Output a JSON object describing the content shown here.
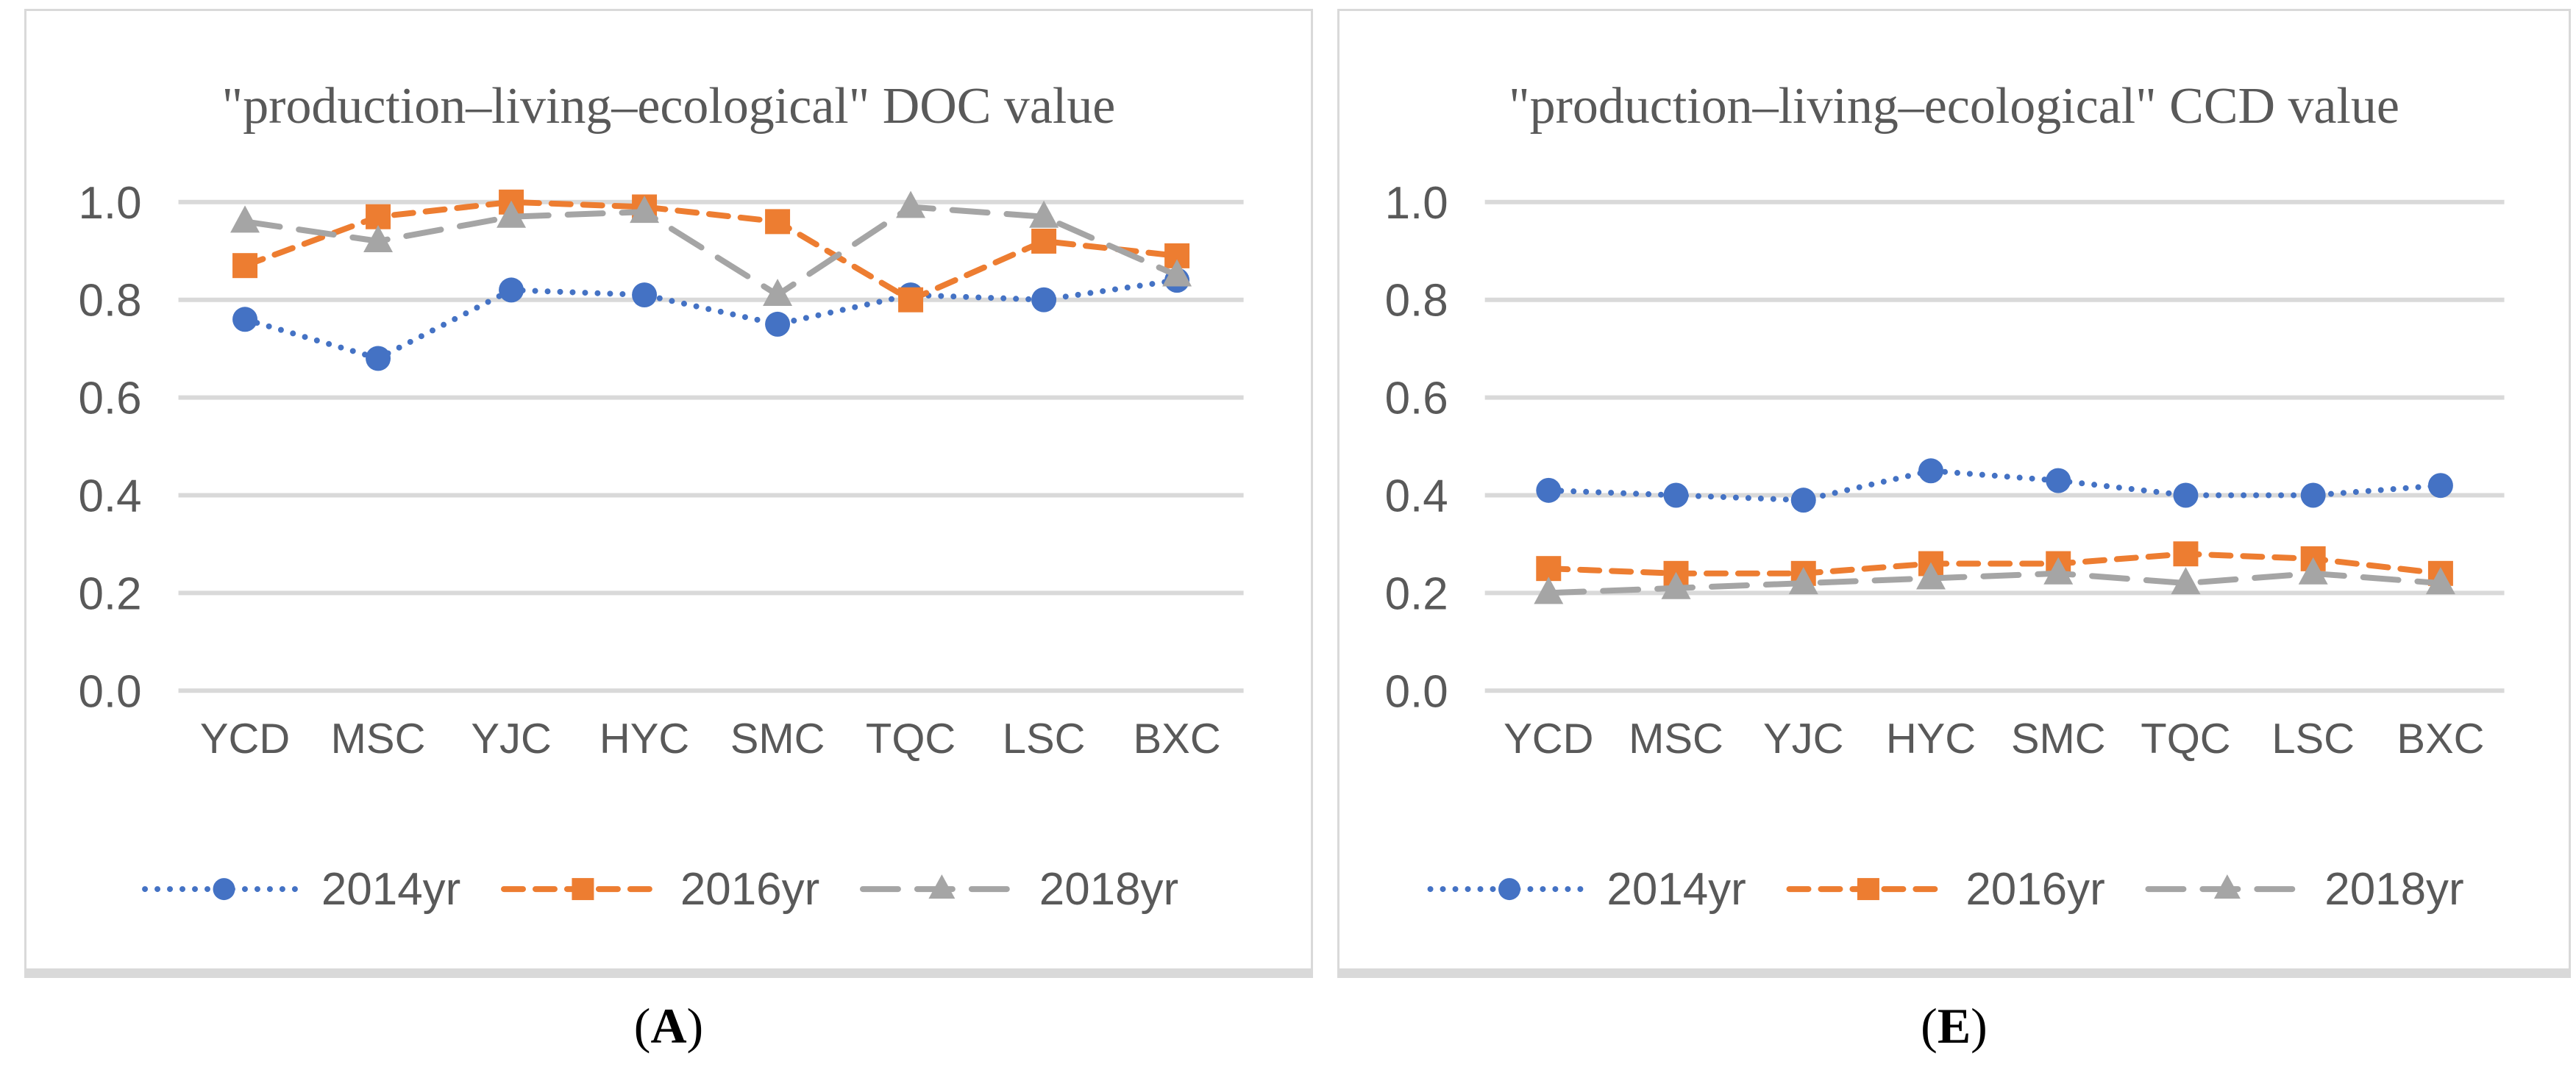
{
  "figure": {
    "text_color": "#595959",
    "grid_color": "#d9d9d9",
    "background": "#ffffff"
  },
  "chart_data": [
    {
      "type": "line",
      "title": "\"production–living–ecological\" DOC value",
      "caption_open": "(",
      "caption_letter": "A",
      "caption_close": ")",
      "categories": [
        "YCD",
        "MSC",
        "YJC",
        "HYC",
        "SMC",
        "TQC",
        "LSC",
        "BXC"
      ],
      "series": [
        {
          "name": "2014yr",
          "color": "#4472C4",
          "marker": "circle",
          "line_style": "dotted",
          "values": [
            0.76,
            0.68,
            0.82,
            0.81,
            0.75,
            0.81,
            0.8,
            0.84
          ]
        },
        {
          "name": "2016yr",
          "color": "#ED7D31",
          "marker": "square",
          "line_style": "dashed",
          "values": [
            0.87,
            0.97,
            1.0,
            0.99,
            0.96,
            0.8,
            0.92,
            0.89
          ]
        },
        {
          "name": "2018yr",
          "color": "#A5A5A5",
          "marker": "triangle",
          "line_style": "long-dash",
          "values": [
            0.96,
            0.92,
            0.97,
            0.98,
            0.81,
            0.99,
            0.97,
            0.85
          ]
        }
      ],
      "ylim": [
        0.0,
        1.0
      ],
      "y_ticks": [
        "1.0",
        "0.8",
        "0.6",
        "0.4",
        "0.2",
        "0.0"
      ],
      "grid": true,
      "legend_position": "bottom"
    },
    {
      "type": "line",
      "title": "\"production–living–ecological\" CCD value",
      "caption_open": "(",
      "caption_letter": "E",
      "caption_close": ")",
      "categories": [
        "YCD",
        "MSC",
        "YJC",
        "HYC",
        "SMC",
        "TQC",
        "LSC",
        "BXC"
      ],
      "series": [
        {
          "name": "2014yr",
          "color": "#4472C4",
          "marker": "circle",
          "line_style": "dotted",
          "values": [
            0.41,
            0.4,
            0.39,
            0.45,
            0.43,
            0.4,
            0.4,
            0.42
          ]
        },
        {
          "name": "2016yr",
          "color": "#ED7D31",
          "marker": "square",
          "line_style": "dashed",
          "values": [
            0.25,
            0.24,
            0.24,
            0.26,
            0.26,
            0.28,
            0.27,
            0.24
          ]
        },
        {
          "name": "2018yr",
          "color": "#A5A5A5",
          "marker": "triangle",
          "line_style": "long-dash",
          "values": [
            0.2,
            0.21,
            0.22,
            0.23,
            0.24,
            0.22,
            0.24,
            0.22
          ]
        }
      ],
      "ylim": [
        0.0,
        1.0
      ],
      "y_ticks": [
        "1.0",
        "0.8",
        "0.6",
        "0.4",
        "0.2",
        "0.0"
      ],
      "grid": true,
      "legend_position": "bottom"
    }
  ]
}
